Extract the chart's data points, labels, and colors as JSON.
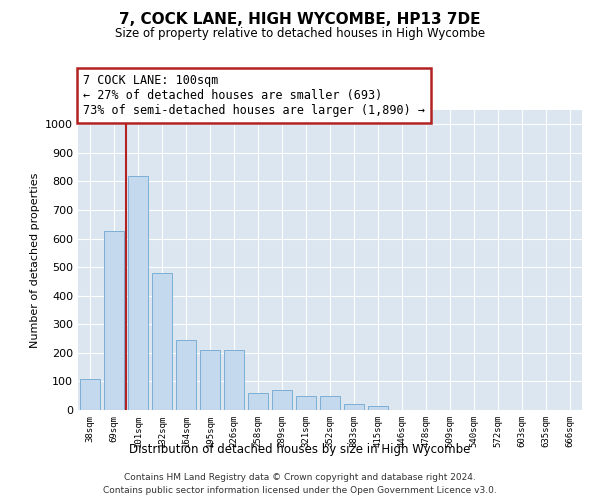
{
  "title": "7, COCK LANE, HIGH WYCOMBE, HP13 7DE",
  "subtitle": "Size of property relative to detached houses in High Wycombe",
  "xlabel": "Distribution of detached houses by size in High Wycombe",
  "ylabel": "Number of detached properties",
  "footer_line1": "Contains HM Land Registry data © Crown copyright and database right 2024.",
  "footer_line2": "Contains public sector information licensed under the Open Government Licence v3.0.",
  "annotation_line1": "7 COCK LANE: 100sqm",
  "annotation_line2": "← 27% of detached houses are smaller (693)",
  "annotation_line3": "73% of semi-detached houses are larger (1,890) →",
  "bar_color": "#c5d9ee",
  "bar_edge_color": "#7bafd4",
  "vline_color": "#b22222",
  "annotation_box_edgecolor": "#b22222",
  "bg_color": "#e8eef5",
  "plot_bg_color": "#dce6f0",
  "categories": [
    "38sqm",
    "69sqm",
    "101sqm",
    "132sqm",
    "164sqm",
    "195sqm",
    "226sqm",
    "258sqm",
    "289sqm",
    "321sqm",
    "352sqm",
    "383sqm",
    "415sqm",
    "446sqm",
    "478sqm",
    "509sqm",
    "540sqm",
    "572sqm",
    "603sqm",
    "635sqm",
    "666sqm"
  ],
  "values": [
    110,
    625,
    820,
    480,
    245,
    210,
    210,
    60,
    70,
    50,
    50,
    20,
    15,
    0,
    0,
    0,
    0,
    0,
    0,
    0,
    0
  ],
  "ylim": [
    0,
    1050
  ],
  "yticks": [
    0,
    100,
    200,
    300,
    400,
    500,
    600,
    700,
    800,
    900,
    1000
  ],
  "vline_x_index": 2
}
